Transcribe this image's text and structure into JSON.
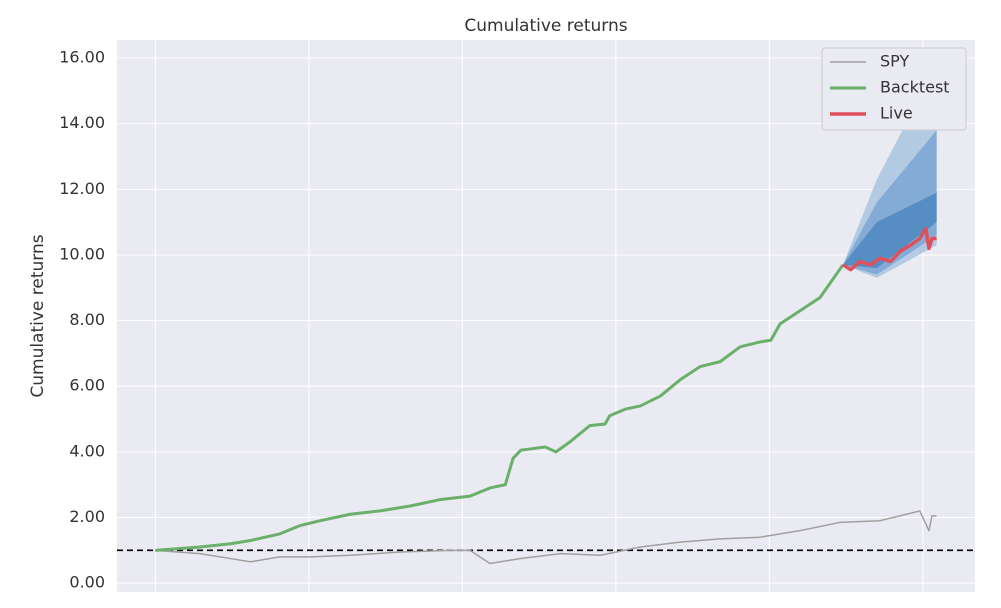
{
  "chart_data": {
    "type": "line",
    "title": "Cumulative returns",
    "y_label": "Cumulative returns",
    "ylim": [
      -0.27,
      16.55
    ],
    "xlim": [
      -0.25,
      5.34
    ],
    "xticks": [
      0,
      1,
      2,
      3,
      4,
      5
    ],
    "yticks": [
      {
        "value": 0,
        "label": "0.00"
      },
      {
        "value": 2,
        "label": "2.00"
      },
      {
        "value": 4,
        "label": "4.00"
      },
      {
        "value": 6,
        "label": "6.00"
      },
      {
        "value": 8,
        "label": "8.00"
      },
      {
        "value": 10,
        "label": "10.00"
      },
      {
        "value": 12,
        "label": "12.00"
      },
      {
        "value": 14,
        "label": "14.00"
      },
      {
        "value": 16,
        "label": "16.00"
      }
    ],
    "grid": true,
    "hline": 1,
    "legend": "upper right",
    "series": [
      {
        "name": "SPY",
        "color": "#a0a0a0",
        "width": 1.5,
        "x": [
          0,
          0.29,
          0.62,
          0.81,
          1.01,
          1.27,
          1.6,
          1.92,
          2.05,
          2.18,
          2.38,
          2.64,
          2.9,
          3.16,
          3.42,
          3.68,
          3.94,
          4.2,
          4.46,
          4.72,
          4.85,
          4.98,
          5.04,
          5.06,
          5.09
        ],
        "values": [
          1.0,
          0.9,
          0.65,
          0.8,
          0.8,
          0.85,
          0.95,
          1.0,
          1.0,
          0.6,
          0.75,
          0.9,
          0.85,
          1.1,
          1.25,
          1.35,
          1.4,
          1.6,
          1.85,
          1.9,
          2.05,
          2.2,
          1.6,
          2.05,
          2.05
        ]
      },
      {
        "name": "Backtest",
        "color": "#6aaf6a",
        "width": 3,
        "x": [
          0,
          0.29,
          0.49,
          0.62,
          0.81,
          0.94,
          1.07,
          1.27,
          1.46,
          1.66,
          1.86,
          2.05,
          2.18,
          2.28,
          2.33,
          2.38,
          2.54,
          2.61,
          2.7,
          2.83,
          2.93,
          2.96,
          3.06,
          3.16,
          3.29,
          3.42,
          3.55,
          3.68,
          3.81,
          3.94,
          4.01,
          4.07,
          4.2,
          4.33,
          4.48
        ],
        "values": [
          1.0,
          1.1,
          1.2,
          1.3,
          1.5,
          1.75,
          1.9,
          2.1,
          2.2,
          2.35,
          2.55,
          2.65,
          2.9,
          3.0,
          3.8,
          4.05,
          4.15,
          4.0,
          4.3,
          4.8,
          4.85,
          5.1,
          5.3,
          5.4,
          5.7,
          6.2,
          6.6,
          6.75,
          7.2,
          7.35,
          7.4,
          7.9,
          8.3,
          8.7,
          9.7
        ]
      },
      {
        "name": "Live",
        "color": "#e0505a",
        "width": 3.5,
        "x": [
          4.48,
          4.53,
          4.59,
          4.66,
          4.72,
          4.79,
          4.85,
          4.92,
          4.98,
          5.02,
          5.04,
          5.06,
          5.09
        ],
        "values": [
          9.7,
          9.55,
          9.8,
          9.7,
          9.9,
          9.8,
          10.1,
          10.3,
          10.5,
          10.8,
          10.2,
          10.5,
          10.5
        ]
      }
    ],
    "cone_x": [
      4.48,
      4.7,
      5.09
    ],
    "cone": [
      {
        "color": "#a9c4e0",
        "lower": [
          9.7,
          9.3,
          10.3
        ],
        "upper": [
          9.7,
          12.3,
          15.8
        ]
      },
      {
        "color": "#7aa6d2",
        "lower": [
          9.7,
          9.4,
          10.6
        ],
        "upper": [
          9.7,
          11.6,
          13.8
        ]
      },
      {
        "color": "#4f88bf",
        "lower": [
          9.7,
          9.6,
          11.0
        ],
        "upper": [
          9.7,
          11.0,
          11.9
        ]
      }
    ]
  }
}
